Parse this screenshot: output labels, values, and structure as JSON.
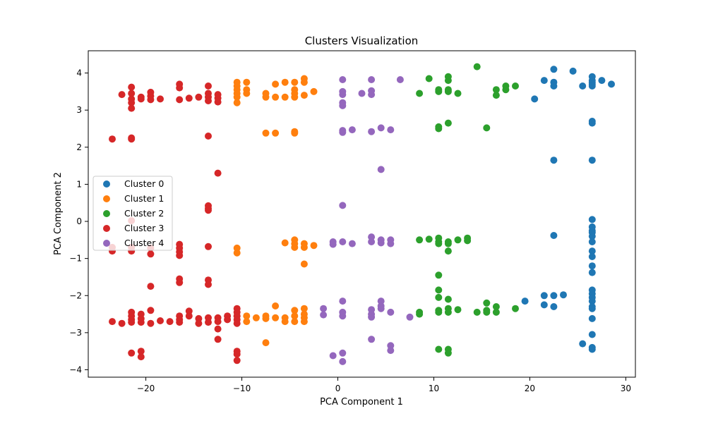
{
  "chart_data": {
    "type": "scatter",
    "title": "Clusters Visualization",
    "xlabel": "PCA Component 1",
    "ylabel": "PCA Component 2",
    "xlim": [
      -26,
      31
    ],
    "ylim": [
      -4.2,
      4.6
    ],
    "xticks": [
      -20,
      -10,
      0,
      10,
      20,
      30
    ],
    "yticks": [
      -4,
      -3,
      -2,
      -1,
      0,
      1,
      2,
      3,
      4
    ],
    "grid": false,
    "legend_position": "center-left",
    "series": [
      {
        "name": "Cluster 0",
        "color": "#1f77b4",
        "points": [
          [
            22.5,
            4.1
          ],
          [
            24.5,
            4.05
          ],
          [
            21.5,
            3.8
          ],
          [
            22.5,
            3.75
          ],
          [
            22.5,
            3.65
          ],
          [
            25.5,
            3.65
          ],
          [
            26.5,
            3.9
          ],
          [
            26.5,
            3.8
          ],
          [
            26.5,
            3.75
          ],
          [
            26.5,
            3.7
          ],
          [
            26.5,
            3.65
          ],
          [
            27.5,
            3.8
          ],
          [
            28.5,
            3.7
          ],
          [
            20.5,
            3.3
          ],
          [
            22.5,
            1.65
          ],
          [
            26.5,
            2.7
          ],
          [
            26.5,
            2.65
          ],
          [
            26.5,
            1.65
          ],
          [
            22.5,
            -0.38
          ],
          [
            26.5,
            0.05
          ],
          [
            26.5,
            -0.15
          ],
          [
            26.5,
            -0.25
          ],
          [
            26.5,
            -0.3
          ],
          [
            26.5,
            -0.4
          ],
          [
            26.5,
            -0.55
          ],
          [
            26.5,
            -0.8
          ],
          [
            26.5,
            -0.95
          ],
          [
            26.5,
            -1.2
          ],
          [
            26.5,
            -1.38
          ],
          [
            26.5,
            -1.85
          ],
          [
            26.5,
            -1.95
          ],
          [
            26.5,
            -2.05
          ],
          [
            26.5,
            -2.15
          ],
          [
            26.5,
            -2.3
          ],
          [
            26.5,
            -2.35
          ],
          [
            26.5,
            -2.62
          ],
          [
            26.5,
            -3.05
          ],
          [
            26.5,
            -3.4
          ],
          [
            26.5,
            -3.45
          ],
          [
            25.5,
            -3.3
          ],
          [
            19.5,
            -2.15
          ],
          [
            21.5,
            -2.0
          ],
          [
            21.5,
            -2.25
          ],
          [
            22.5,
            -2.0
          ],
          [
            22.5,
            -2.3
          ],
          [
            23.5,
            -1.98
          ]
        ]
      },
      {
        "name": "Cluster 1",
        "color": "#ff7f0e",
        "points": [
          [
            -10.5,
            3.75
          ],
          [
            -10.5,
            3.65
          ],
          [
            -10.5,
            3.55
          ],
          [
            -10.5,
            3.45
          ],
          [
            -10.5,
            3.35
          ],
          [
            -10.5,
            3.2
          ],
          [
            -9.5,
            3.75
          ],
          [
            -9.5,
            3.55
          ],
          [
            -9.5,
            3.45
          ],
          [
            -7.5,
            3.45
          ],
          [
            -7.5,
            3.35
          ],
          [
            -6.5,
            3.7
          ],
          [
            -6.5,
            3.35
          ],
          [
            -5.5,
            3.75
          ],
          [
            -5.5,
            3.35
          ],
          [
            -4.5,
            3.75
          ],
          [
            -4.5,
            3.55
          ],
          [
            -4.5,
            3.45
          ],
          [
            -4.5,
            3.35
          ],
          [
            -3.5,
            3.85
          ],
          [
            -3.5,
            3.75
          ],
          [
            -3.5,
            3.4
          ],
          [
            -2.5,
            3.5
          ],
          [
            -7.5,
            2.38
          ],
          [
            -6.5,
            2.38
          ],
          [
            -4.5,
            2.42
          ],
          [
            -4.5,
            2.38
          ],
          [
            -10.5,
            -0.72
          ],
          [
            -10.5,
            -0.85
          ],
          [
            -5.5,
            -0.58
          ],
          [
            -4.5,
            -0.5
          ],
          [
            -4.5,
            -0.6
          ],
          [
            -4.5,
            -0.7
          ],
          [
            -3.5,
            -0.6
          ],
          [
            -3.5,
            -0.7
          ],
          [
            -2.5,
            -0.65
          ],
          [
            -3.5,
            -1.15
          ],
          [
            -10.5,
            -2.55
          ],
          [
            -9.5,
            -2.55
          ],
          [
            -9.5,
            -2.7
          ],
          [
            -8.5,
            -2.6
          ],
          [
            -7.5,
            -2.55
          ],
          [
            -7.5,
            -2.62
          ],
          [
            -6.5,
            -2.28
          ],
          [
            -6.5,
            -2.6
          ],
          [
            -5.5,
            -2.6
          ],
          [
            -5.5,
            -2.7
          ],
          [
            -4.5,
            -2.4
          ],
          [
            -4.5,
            -2.55
          ],
          [
            -4.5,
            -2.7
          ],
          [
            -3.5,
            -2.35
          ],
          [
            -3.5,
            -2.5
          ],
          [
            -3.5,
            -2.6
          ],
          [
            -3.5,
            -2.7
          ],
          [
            -7.5,
            -3.27
          ]
        ]
      },
      {
        "name": "Cluster 2",
        "color": "#2ca02c",
        "points": [
          [
            14.5,
            4.17
          ],
          [
            9.5,
            3.85
          ],
          [
            11.5,
            3.9
          ],
          [
            11.5,
            3.8
          ],
          [
            10.5,
            3.55
          ],
          [
            10.5,
            3.5
          ],
          [
            11.5,
            3.55
          ],
          [
            11.5,
            3.5
          ],
          [
            8.5,
            3.45
          ],
          [
            12.5,
            3.45
          ],
          [
            16.5,
            3.55
          ],
          [
            16.5,
            3.4
          ],
          [
            17.5,
            3.65
          ],
          [
            17.5,
            3.55
          ],
          [
            18.5,
            3.65
          ],
          [
            10.5,
            2.55
          ],
          [
            10.5,
            2.5
          ],
          [
            11.5,
            2.65
          ],
          [
            15.5,
            2.52
          ],
          [
            8.5,
            -0.5
          ],
          [
            9.5,
            -0.48
          ],
          [
            10.5,
            -0.45
          ],
          [
            10.5,
            -0.55
          ],
          [
            10.5,
            -0.6
          ],
          [
            11.5,
            -0.55
          ],
          [
            11.5,
            -0.6
          ],
          [
            12.5,
            -0.5
          ],
          [
            13.5,
            -0.45
          ],
          [
            13.5,
            -0.52
          ],
          [
            11.5,
            -0.8
          ],
          [
            10.5,
            -1.45
          ],
          [
            10.5,
            -1.85
          ],
          [
            10.5,
            -2.05
          ],
          [
            11.5,
            -2.1
          ],
          [
            8.5,
            -2.45
          ],
          [
            8.5,
            -2.5
          ],
          [
            10.5,
            -2.4
          ],
          [
            10.5,
            -2.45
          ],
          [
            11.5,
            -2.35
          ],
          [
            11.5,
            -2.45
          ],
          [
            12.5,
            -2.38
          ],
          [
            14.5,
            -2.45
          ],
          [
            15.5,
            -2.2
          ],
          [
            15.5,
            -2.4
          ],
          [
            15.5,
            -2.45
          ],
          [
            16.5,
            -2.3
          ],
          [
            16.5,
            -2.45
          ],
          [
            18.5,
            -2.35
          ],
          [
            10.5,
            -3.45
          ],
          [
            11.5,
            -3.45
          ],
          [
            11.5,
            -3.55
          ]
        ]
      },
      {
        "name": "Cluster 3",
        "color": "#d62728",
        "points": [
          [
            -21.5,
            3.62
          ],
          [
            -22.5,
            3.42
          ],
          [
            -21.5,
            3.45
          ],
          [
            -21.5,
            3.3
          ],
          [
            -21.5,
            3.2
          ],
          [
            -21.5,
            3.05
          ],
          [
            -20.5,
            3.35
          ],
          [
            -20.5,
            3.3
          ],
          [
            -19.5,
            3.48
          ],
          [
            -19.5,
            3.38
          ],
          [
            -19.5,
            3.28
          ],
          [
            -18.5,
            3.3
          ],
          [
            -16.5,
            3.7
          ],
          [
            -16.5,
            3.6
          ],
          [
            -16.5,
            3.28
          ],
          [
            -15.5,
            3.32
          ],
          [
            -14.5,
            3.35
          ],
          [
            -13.5,
            3.65
          ],
          [
            -13.5,
            3.45
          ],
          [
            -13.5,
            3.35
          ],
          [
            -13.5,
            3.25
          ],
          [
            -12.5,
            3.42
          ],
          [
            -12.5,
            3.32
          ],
          [
            -12.5,
            3.22
          ],
          [
            -23.5,
            2.22
          ],
          [
            -21.5,
            2.25
          ],
          [
            -21.5,
            2.22
          ],
          [
            -13.5,
            2.3
          ],
          [
            -12.5,
            1.3
          ],
          [
            -13.5,
            0.42
          ],
          [
            -13.5,
            0.35
          ],
          [
            -13.5,
            0.3
          ],
          [
            -21.5,
            0.02
          ],
          [
            -23.5,
            -0.7
          ],
          [
            -23.5,
            -0.8
          ],
          [
            -21.5,
            -0.7
          ],
          [
            -21.5,
            -0.8
          ],
          [
            -19.5,
            -0.72
          ],
          [
            -19.5,
            -0.88
          ],
          [
            -16.5,
            -0.62
          ],
          [
            -16.5,
            -0.72
          ],
          [
            -16.5,
            -0.82
          ],
          [
            -16.5,
            -0.92
          ],
          [
            -13.5,
            -0.68
          ],
          [
            -19.5,
            -1.75
          ],
          [
            -16.5,
            -1.55
          ],
          [
            -16.5,
            -1.65
          ],
          [
            -13.5,
            -1.58
          ],
          [
            -13.5,
            -1.7
          ],
          [
            -21.5,
            -2.45
          ],
          [
            -21.5,
            -2.55
          ],
          [
            -21.5,
            -2.65
          ],
          [
            -21.5,
            -2.72
          ],
          [
            -20.5,
            -2.5
          ],
          [
            -20.5,
            -2.62
          ],
          [
            -20.5,
            -2.72
          ],
          [
            -19.5,
            -2.4
          ],
          [
            -19.5,
            -2.75
          ],
          [
            -23.5,
            -2.7
          ],
          [
            -22.5,
            -2.75
          ],
          [
            -18.5,
            -2.68
          ],
          [
            -17.5,
            -2.7
          ],
          [
            -16.5,
            -2.55
          ],
          [
            -16.5,
            -2.65
          ],
          [
            -16.5,
            -2.72
          ],
          [
            -15.5,
            -2.42
          ],
          [
            -15.5,
            -2.55
          ],
          [
            -14.5,
            -2.62
          ],
          [
            -14.5,
            -2.75
          ],
          [
            -13.5,
            -2.6
          ],
          [
            -13.5,
            -2.72
          ],
          [
            -12.5,
            -2.6
          ],
          [
            -12.5,
            -2.7
          ],
          [
            -12.5,
            -2.9
          ],
          [
            -11.5,
            -2.55
          ],
          [
            -11.5,
            -2.65
          ],
          [
            -10.5,
            -2.35
          ],
          [
            -10.5,
            -2.45
          ],
          [
            -10.5,
            -2.55
          ],
          [
            -10.5,
            -2.65
          ],
          [
            -10.5,
            -2.75
          ],
          [
            -12.5,
            -3.18
          ],
          [
            -21.5,
            -3.55
          ],
          [
            -20.5,
            -3.5
          ],
          [
            -20.5,
            -3.65
          ],
          [
            -10.5,
            -3.5
          ],
          [
            -10.5,
            -3.58
          ],
          [
            -10.5,
            -3.75
          ]
        ]
      },
      {
        "name": "Cluster 4",
        "color": "#9467bd",
        "points": [
          [
            0.5,
            3.82
          ],
          [
            3.5,
            3.82
          ],
          [
            6.5,
            3.82
          ],
          [
            0.5,
            3.5
          ],
          [
            0.5,
            3.42
          ],
          [
            0.5,
            3.2
          ],
          [
            0.5,
            3.12
          ],
          [
            2.5,
            3.45
          ],
          [
            3.5,
            3.52
          ],
          [
            3.5,
            3.42
          ],
          [
            0.5,
            2.45
          ],
          [
            0.5,
            2.4
          ],
          [
            1.5,
            2.47
          ],
          [
            3.5,
            2.42
          ],
          [
            4.5,
            2.52
          ],
          [
            5.5,
            2.47
          ],
          [
            4.5,
            1.4
          ],
          [
            0.5,
            0.43
          ],
          [
            -0.5,
            -0.55
          ],
          [
            -0.5,
            -0.62
          ],
          [
            0.5,
            -0.55
          ],
          [
            1.5,
            -0.6
          ],
          [
            3.5,
            -0.42
          ],
          [
            3.5,
            -0.55
          ],
          [
            4.5,
            -0.5
          ],
          [
            4.5,
            -0.58
          ],
          [
            5.5,
            -0.5
          ],
          [
            5.5,
            -0.6
          ],
          [
            0.5,
            -2.15
          ],
          [
            -1.5,
            -2.35
          ],
          [
            -1.5,
            -2.52
          ],
          [
            0.5,
            -2.45
          ],
          [
            0.5,
            -2.55
          ],
          [
            3.5,
            -2.38
          ],
          [
            3.5,
            -2.5
          ],
          [
            3.5,
            -2.58
          ],
          [
            4.5,
            -2.15
          ],
          [
            4.5,
            -2.28
          ],
          [
            4.5,
            -2.35
          ],
          [
            5.5,
            -2.45
          ],
          [
            7.5,
            -2.58
          ],
          [
            3.5,
            -3.18
          ],
          [
            5.5,
            -3.35
          ],
          [
            5.5,
            -3.48
          ],
          [
            -0.5,
            -3.62
          ],
          [
            0.5,
            -3.55
          ],
          [
            0.5,
            -3.78
          ]
        ]
      }
    ]
  }
}
